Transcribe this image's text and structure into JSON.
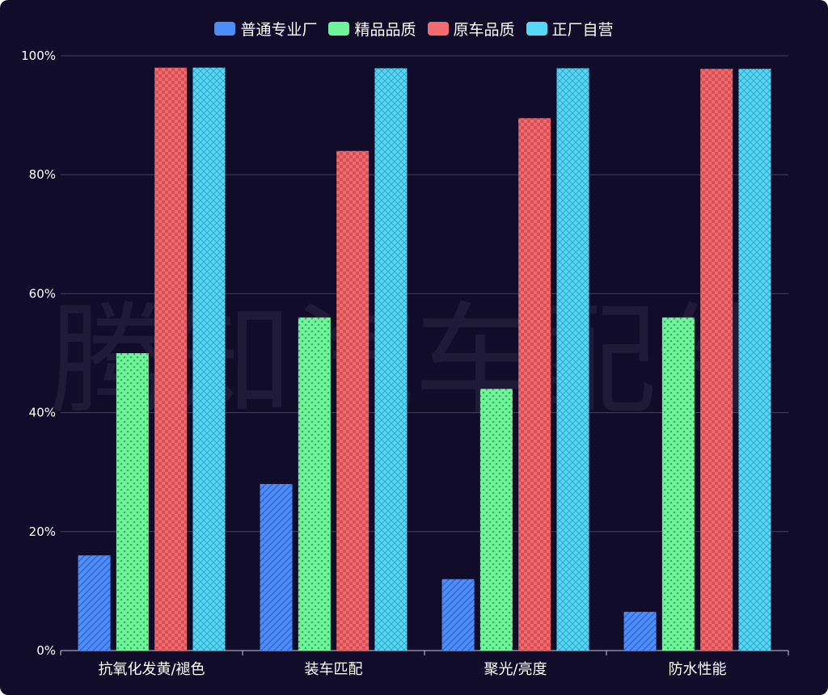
{
  "watermark": "腾知汽车配件",
  "chart_data": {
    "type": "bar",
    "categories": [
      "抗氧化发黄/褪色",
      "装车匹配",
      "聚光/亮度",
      "防水性能"
    ],
    "series": [
      {
        "name": "普通专业厂",
        "color": "#4d8dfa",
        "values": [
          16,
          28,
          12,
          6.5
        ]
      },
      {
        "name": "精品品质",
        "color": "#6ef59a",
        "values": [
          50,
          56,
          44,
          56
        ]
      },
      {
        "name": "原车品质",
        "color": "#f26b6f",
        "values": [
          98,
          84,
          89.5,
          97.8
        ]
      },
      {
        "name": "正厂自营",
        "color": "#55d8f5",
        "values": [
          98,
          97.9,
          97.9,
          97.8
        ]
      }
    ],
    "ylim": [
      0,
      100
    ],
    "yticks": [
      "0%",
      "20%",
      "40%",
      "60%",
      "80%",
      "100%"
    ],
    "grid": true,
    "legend_position": "top-center"
  }
}
